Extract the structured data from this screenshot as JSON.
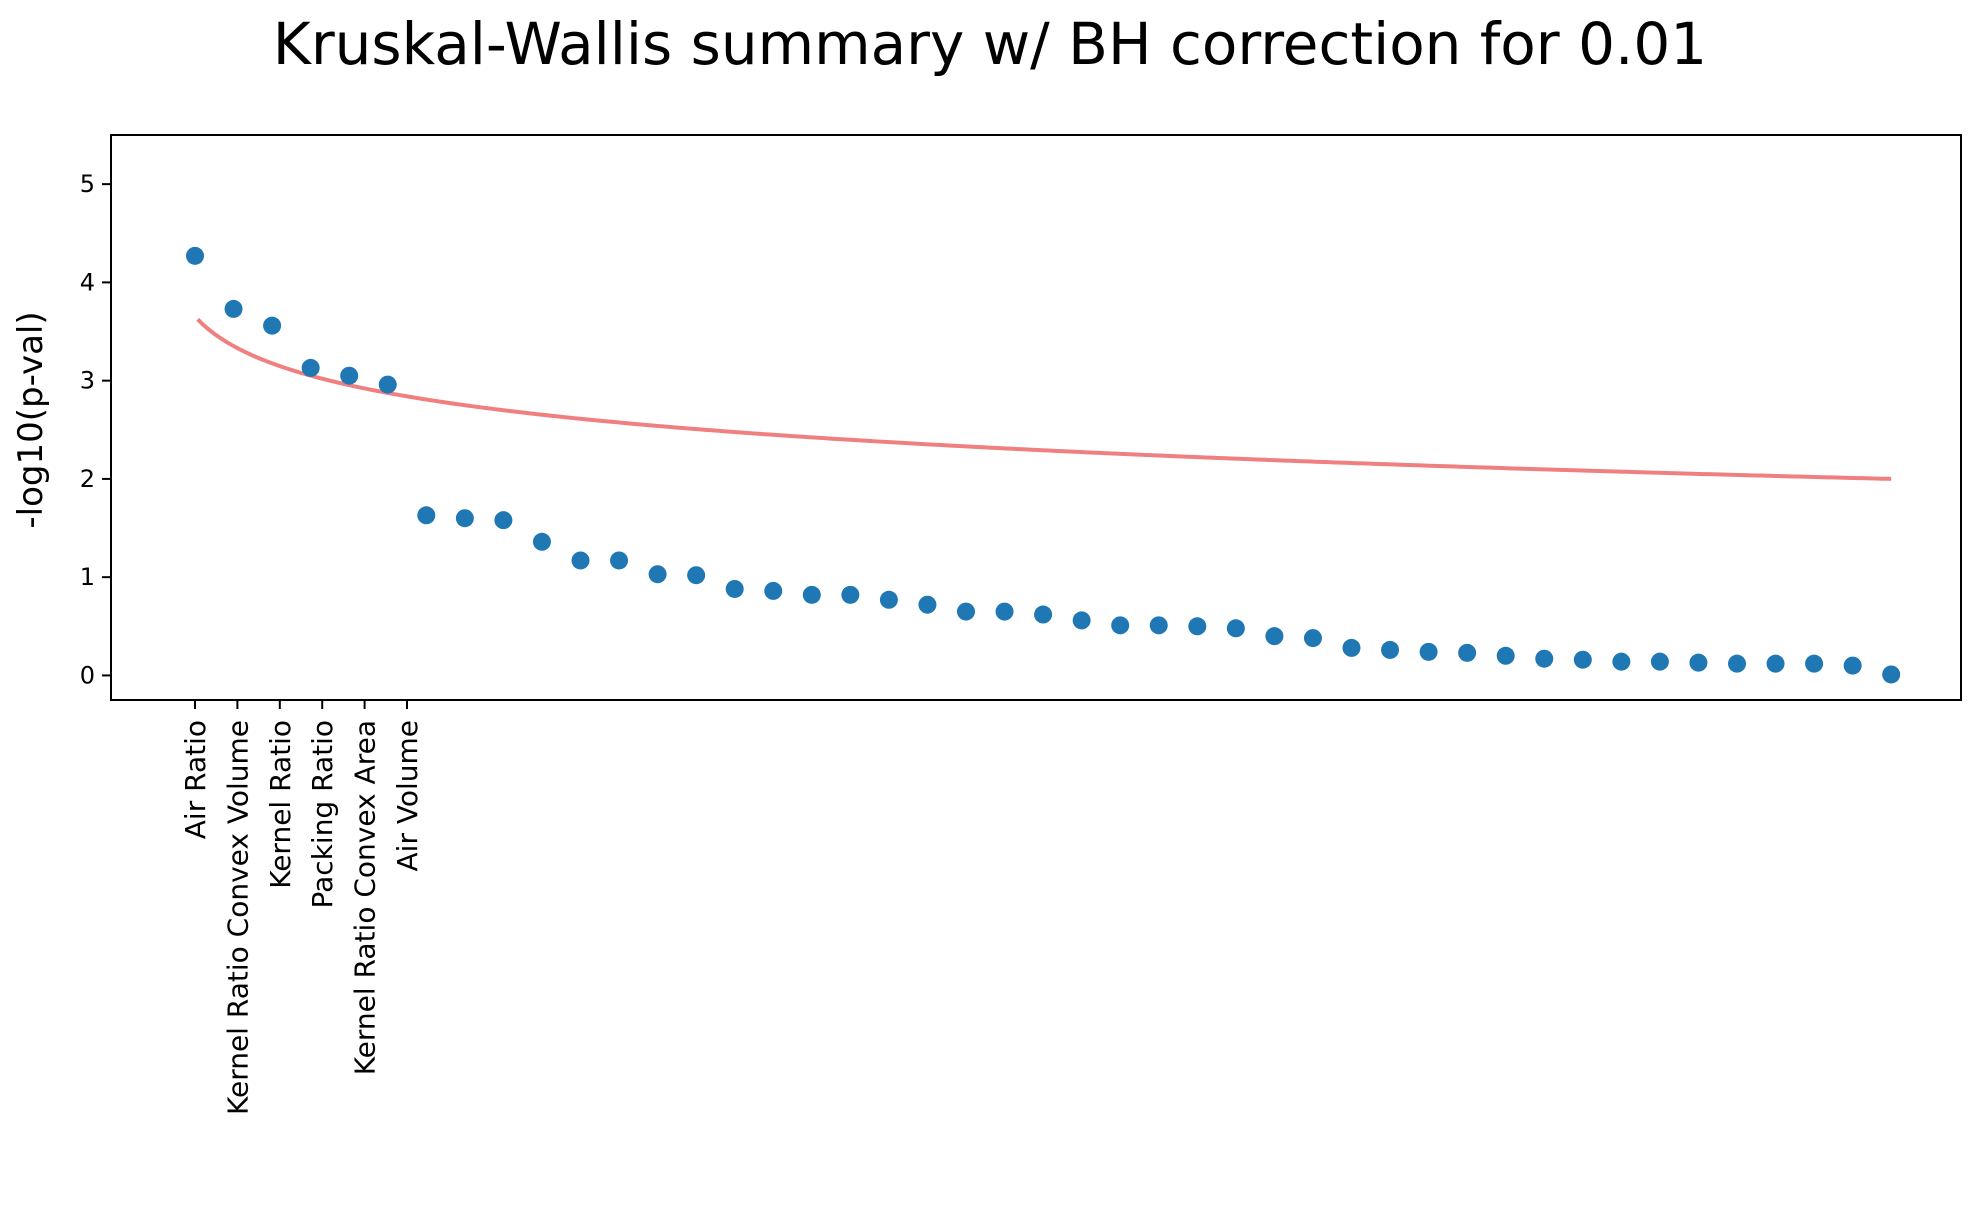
{
  "chart_data": {
    "type": "scatter",
    "title": "Kruskal-Wallis summary w/ BH correction for 0.01",
    "xlabel": "",
    "ylabel": "-log10(p-val)",
    "ylim": [
      -0.25,
      5.5
    ],
    "grid": false,
    "legend": "none",
    "x_tick_labels": [
      "Air Ratio",
      "Kernel Ratio Convex Volume",
      "Kernel Ratio",
      "Packing Ratio",
      "Kernel Ratio Convex Area",
      "Air Volume"
    ],
    "y_ticks": [
      0,
      1,
      2,
      3,
      4,
      5
    ],
    "n_tests": 45,
    "alpha": 0.01,
    "series": [
      {
        "type": "scatter",
        "color": "#1f77b4",
        "values": [
          4.27,
          3.73,
          3.56,
          3.13,
          3.05,
          2.96,
          1.63,
          1.6,
          1.58,
          1.36,
          1.17,
          1.17,
          1.03,
          1.02,
          0.88,
          0.86,
          0.82,
          0.82,
          0.77,
          0.72,
          0.65,
          0.65,
          0.62,
          0.56,
          0.51,
          0.51,
          0.5,
          0.48,
          0.4,
          0.38,
          0.28,
          0.26,
          0.24,
          0.23,
          0.2,
          0.17,
          0.16,
          0.14,
          0.14,
          0.13,
          0.12,
          0.12,
          0.12,
          0.1,
          0.01
        ]
      },
      {
        "type": "line",
        "color": "#f08080"
      }
    ]
  }
}
